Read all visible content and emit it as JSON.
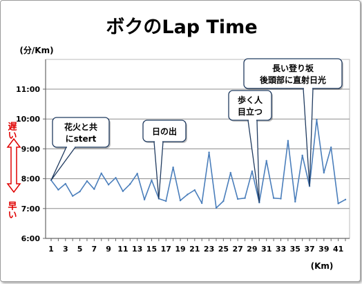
{
  "chart_data": {
    "type": "line",
    "title": "ボクのLap Time",
    "ylabel": "(分/Km)",
    "xlabel": "(Km)",
    "x": [
      1,
      2,
      3,
      4,
      5,
      6,
      7,
      8,
      9,
      10,
      11,
      12,
      13,
      14,
      15,
      16,
      17,
      18,
      19,
      20,
      21,
      22,
      23,
      24,
      25,
      26,
      27,
      28,
      29,
      30,
      31,
      32,
      33,
      34,
      35,
      36,
      37,
      38,
      39,
      40,
      41,
      42
    ],
    "y_minutes": [
      7.95,
      7.63,
      7.83,
      7.42,
      7.57,
      7.92,
      7.65,
      8.18,
      7.8,
      8.03,
      7.58,
      7.82,
      8.17,
      7.3,
      7.95,
      7.33,
      7.25,
      8.38,
      7.27,
      7.47,
      7.62,
      7.18,
      8.88,
      7.02,
      7.25,
      8.2,
      7.32,
      7.35,
      8.25,
      7.2,
      8.6,
      7.35,
      7.33,
      9.27,
      7.23,
      8.78,
      7.75,
      9.98,
      8.2,
      9.05,
      7.17,
      7.3
    ],
    "ylim": [
      6,
      12
    ],
    "yticks": [
      "6:00",
      "7:00",
      "8:00",
      "9:00",
      "10:00",
      "11:00"
    ],
    "xticks": [
      "1",
      "3",
      "5",
      "7",
      "9",
      "11",
      "13",
      "15",
      "17",
      "19",
      "21",
      "23",
      "25",
      "27",
      "29",
      "31",
      "33",
      "35",
      "37",
      "39",
      "41"
    ],
    "grid": "horizontal",
    "line_color": "#4a7ebb",
    "side_labels": {
      "slow": "遅い",
      "fast": "早い",
      "color": "#e00000"
    },
    "annotations": [
      {
        "lines": [
          "花火と共",
          "にstert"
        ],
        "at_km": 1
      },
      {
        "lines": [
          "日の出"
        ],
        "at_km": 16
      },
      {
        "lines": [
          "歩く人",
          "目立つ"
        ],
        "at_km": 30
      },
      {
        "lines": [
          "長い登り坂",
          "後頭部に直射日光"
        ],
        "at_km": 37
      }
    ]
  }
}
